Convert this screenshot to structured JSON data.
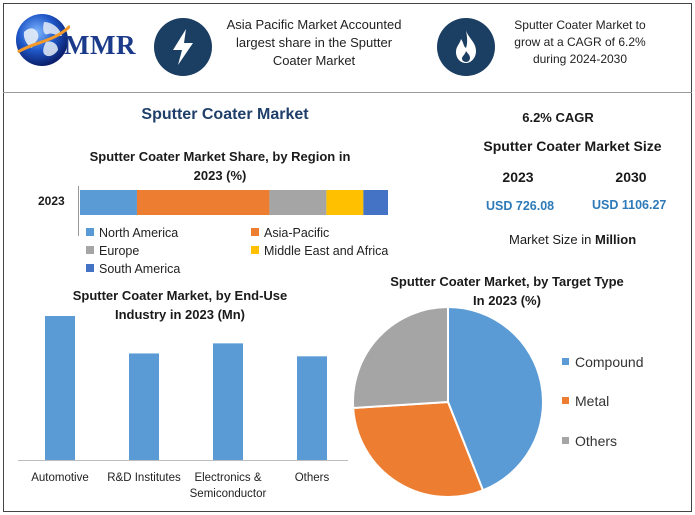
{
  "header": {
    "logo_text": "MMR",
    "box1_lines": [
      "Asia Pacific Market Accounted",
      "largest share in the Sputter",
      "Coater Market"
    ],
    "box2_lines": [
      "Sputter Coater Market to",
      "grow at a CAGR of 6.2%",
      "during 2024-2030"
    ],
    "icon1": "lightning-icon",
    "icon2": "flame-icon",
    "icon_bg_color": "#1b3e63"
  },
  "main_title": "Sputter Coater Market",
  "right_panel": {
    "cagr": "6.2% CAGR",
    "size_title": "Sputter Coater Market Size",
    "year1": "2023",
    "year2": "2030",
    "value1": "USD 726.08",
    "value2": "USD 1106.27",
    "unit_prefix": "Market Size in ",
    "unit_bold": "Million"
  },
  "chart_data": [
    {
      "type": "bar",
      "orientation": "horizontal-stacked",
      "title": "Sputter Coater Market Share, by Region in 2023 (%)",
      "title_lines": [
        "Sputter Coater Market Share, by Region in",
        "2023 (%)"
      ],
      "categories": [
        "2023"
      ],
      "series": [
        {
          "name": "North America",
          "values": [
            18.5
          ],
          "color": "#5b9bd5"
        },
        {
          "name": "Asia-Pacific",
          "values": [
            43
          ],
          "color": "#ed7d31"
        },
        {
          "name": "Europe",
          "values": [
            18.5
          ],
          "color": "#a5a5a5"
        },
        {
          "name": "Middle East and Africa",
          "values": [
            12
          ],
          "color": "#ffc000"
        },
        {
          "name": "South America",
          "values": [
            8
          ],
          "color": "#4472c4"
        }
      ],
      "legend": "bottom"
    },
    {
      "type": "bar",
      "title": "Sputter Coater Market, by End-Use Industry in 2023 (Mn)",
      "title_lines": [
        "Sputter Coater Market, by End-Use",
        "Industry in 2023 (Mn)"
      ],
      "categories": [
        "Automotive",
        "R&D Institutes",
        "Electronics & Semiconductor",
        "Others"
      ],
      "category_lines": [
        [
          "Automotive"
        ],
        [
          "R&D Institutes"
        ],
        [
          "Electronics &",
          "Semiconductor"
        ],
        [
          "Others"
        ]
      ],
      "values": [
        100,
        74,
        81,
        72
      ],
      "color": "#5b9bd5",
      "grid": false
    },
    {
      "type": "pie",
      "title": "Sputter Coater Market, by Target Type In 2023 (%)",
      "title_lines": [
        "Sputter Coater Market, by Target Type",
        "In 2023 (%)"
      ],
      "labels": [
        "Compound",
        "Metal",
        "Others"
      ],
      "values": [
        44,
        30,
        26
      ],
      "colors": [
        "#5b9bd5",
        "#ed7d31",
        "#a5a5a5"
      ],
      "legend": "right"
    }
  ]
}
